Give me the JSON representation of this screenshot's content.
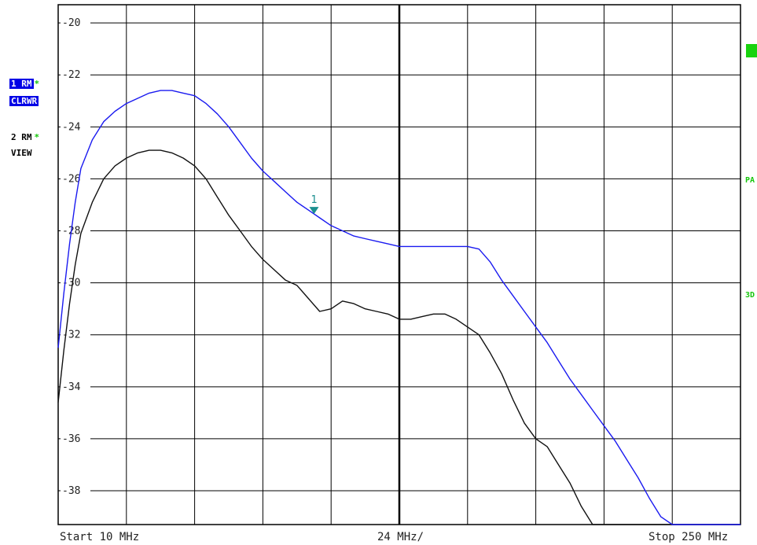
{
  "chart_data": {
    "type": "line",
    "title": "",
    "xlabel": "",
    "ylabel": "",
    "x_start_label": "Start 10 MHz",
    "x_div_label": "24 MHz/",
    "x_stop_label": "Stop 250 MHz",
    "xlim": [
      10,
      250
    ],
    "ylim": [
      -39.3,
      -19.3
    ],
    "y_tick_labels": [
      "-20",
      "-22",
      "-24",
      "-26",
      "-28",
      "-30",
      "-32",
      "-34",
      "-36",
      "-38"
    ],
    "grid": true,
    "colors": {
      "blue_trace": "#1a1af0",
      "black_trace": "#111111",
      "marker": "#1b8f8f",
      "grid": "#000000"
    },
    "series": [
      {
        "name": "1 RM",
        "mode": "CLRWR",
        "color": "#1a1af0",
        "x": [
          10,
          12,
          14,
          16,
          18,
          22,
          26,
          30,
          34,
          38,
          42,
          46,
          50,
          54,
          58,
          62,
          66,
          70,
          74,
          78,
          82,
          86,
          90,
          94,
          98,
          102,
          106,
          110,
          114,
          118,
          122,
          126,
          130,
          134,
          138,
          142,
          146,
          150,
          154,
          158,
          162,
          166,
          170,
          174,
          178,
          182,
          186,
          190,
          194,
          198,
          202,
          206,
          210,
          214,
          218,
          222,
          226,
          230,
          234,
          238,
          242,
          246,
          250
        ],
        "y": [
          -32.5,
          -30.4,
          -28.5,
          -26.9,
          -25.6,
          -24.5,
          -23.8,
          -23.4,
          -23.1,
          -22.9,
          -22.7,
          -22.6,
          -22.6,
          -22.7,
          -22.8,
          -23.1,
          -23.5,
          -24.0,
          -24.6,
          -25.2,
          -25.7,
          -26.1,
          -26.5,
          -26.9,
          -27.2,
          -27.5,
          -27.8,
          -28.0,
          -28.2,
          -28.3,
          -28.4,
          -28.5,
          -28.6,
          -28.6,
          -28.6,
          -28.6,
          -28.6,
          -28.6,
          -28.6,
          -28.7,
          -29.2,
          -29.9,
          -30.5,
          -31.1,
          -31.7,
          -32.3,
          -33.0,
          -33.7,
          -34.3,
          -34.9,
          -35.5,
          -36.1,
          -36.8,
          -37.5,
          -38.3,
          -39.0,
          -39.3,
          -39.3,
          -39.3,
          -39.3,
          -39.3,
          -39.3,
          -39.3
        ]
      },
      {
        "name": "2 RM",
        "mode": "VIEW",
        "color": "#111111",
        "x": [
          10,
          12,
          14,
          16,
          18,
          22,
          26,
          30,
          34,
          38,
          42,
          46,
          50,
          54,
          58,
          62,
          66,
          70,
          74,
          78,
          82,
          86,
          90,
          94,
          98,
          102,
          106,
          110,
          114,
          118,
          122,
          126,
          130,
          134,
          138,
          142,
          146,
          150,
          154,
          158,
          162,
          166,
          170,
          174,
          178,
          182,
          186,
          190,
          194,
          198,
          202,
          206,
          210,
          214,
          218,
          222,
          226,
          230,
          234,
          238,
          242,
          246,
          250
        ],
        "y": [
          -34.6,
          -32.6,
          -30.8,
          -29.3,
          -28.1,
          -26.9,
          -26.0,
          -25.5,
          -25.2,
          -25.0,
          -24.9,
          -24.9,
          -25.0,
          -25.2,
          -25.5,
          -26.0,
          -26.7,
          -27.4,
          -28.0,
          -28.6,
          -29.1,
          -29.5,
          -29.9,
          -30.1,
          -30.6,
          -31.1,
          -31.0,
          -30.7,
          -30.8,
          -31.0,
          -31.1,
          -31.2,
          -31.4,
          -31.4,
          -31.3,
          -31.2,
          -31.2,
          -31.4,
          -31.7,
          -32.0,
          -32.7,
          -33.5,
          -34.5,
          -35.4,
          -36.0,
          -36.3,
          -37.0,
          -37.7,
          -38.6,
          -39.3,
          -39.3,
          -39.3,
          -39.3,
          -39.3,
          -39.3,
          -39.3,
          -39.3,
          -39.3,
          -39.3,
          -39.3,
          -39.3,
          -39.3,
          -39.3
        ]
      }
    ],
    "marker": {
      "label": "1",
      "x": 100,
      "y": -27.2
    }
  },
  "trace_labels": {
    "t1_name": "1 RM",
    "t1_mode": "CLRWR",
    "t2_name": "2 RM",
    "t2_mode": "VIEW",
    "star": "*"
  },
  "side_tags": {
    "pa": "PA",
    "three": "3D"
  }
}
